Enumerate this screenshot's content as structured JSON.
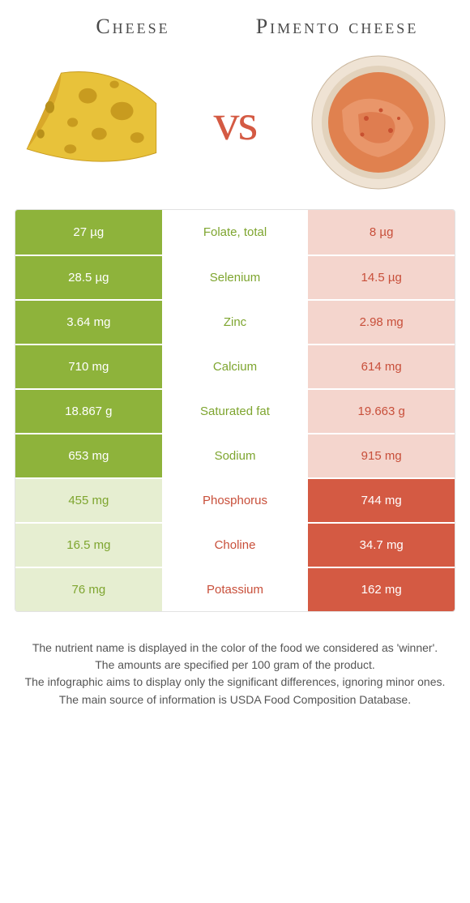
{
  "colors": {
    "green": "#8eb33b",
    "green_light": "#e6eed1",
    "orange": "#d45a43",
    "orange_light": "#f4d5cd",
    "white_text": "#ffffff",
    "green_text": "#7ea52f",
    "orange_text": "#c84f3a"
  },
  "header": {
    "left_title": "Cheese",
    "right_title": "Pimento cheese",
    "vs": "vs"
  },
  "rows": [
    {
      "left": "27 µg",
      "mid": "Folate, total",
      "right": "8 µg",
      "winner": "left"
    },
    {
      "left": "28.5 µg",
      "mid": "Selenium",
      "right": "14.5 µg",
      "winner": "left"
    },
    {
      "left": "3.64 mg",
      "mid": "Zinc",
      "right": "2.98 mg",
      "winner": "left"
    },
    {
      "left": "710 mg",
      "mid": "Calcium",
      "right": "614 mg",
      "winner": "left"
    },
    {
      "left": "18.867 g",
      "mid": "Saturated fat",
      "right": "19.663 g",
      "winner": "left"
    },
    {
      "left": "653 mg",
      "mid": "Sodium",
      "right": "915 mg",
      "winner": "left"
    },
    {
      "left": "455 mg",
      "mid": "Phosphorus",
      "right": "744 mg",
      "winner": "right"
    },
    {
      "left": "16.5 mg",
      "mid": "Choline",
      "right": "34.7 mg",
      "winner": "right"
    },
    {
      "left": "76 mg",
      "mid": "Potassium",
      "right": "162 mg",
      "winner": "right"
    }
  ],
  "footnotes": [
    "The nutrient name is displayed in the color of the food we considered as 'winner'.",
    "The amounts are specified per 100 gram of the product.",
    "The infographic aims to display only the significant differences, ignoring minor ones.",
    "The main source of information is USDA Food Composition Database."
  ]
}
